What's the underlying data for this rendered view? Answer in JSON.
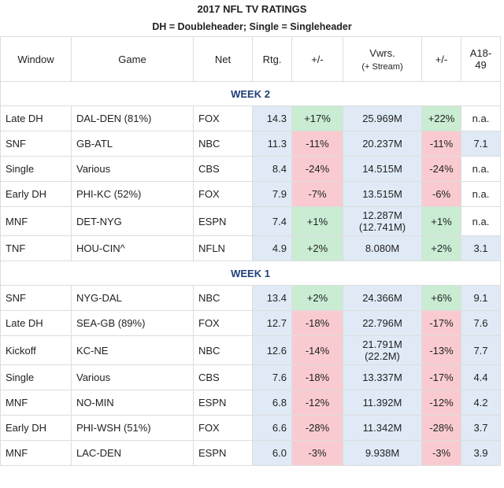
{
  "header": {
    "title": "2017 NFL TV RATINGS",
    "subtitle": "DH = Doubleheader; Single = Singleheader"
  },
  "table": {
    "columns": [
      "Window",
      "Game",
      "Net",
      "Rtg.",
      "+/-",
      [
        "Vwrs.",
        "(+ Stream)"
      ],
      "+/-",
      "A18-49"
    ],
    "sections": [
      {
        "label": "WEEK 2",
        "rows": [
          [
            "Late DH",
            "DAL-DEN (81%)",
            "FOX",
            "14.3",
            "+17%",
            "25.969M",
            "+22%",
            "n.a."
          ],
          [
            "SNF",
            "GB-ATL",
            "NBC",
            "11.3",
            "-11%",
            "20.237M",
            "-11%",
            "7.1"
          ],
          [
            "Single",
            "Various",
            "CBS",
            "8.4",
            "-24%",
            "14.515M",
            "-24%",
            "n.a."
          ],
          [
            "Early DH",
            "PHI-KC (52%)",
            "FOX",
            "7.9",
            "-7%",
            "13.515M",
            "-6%",
            "n.a."
          ],
          [
            "MNF",
            "DET-NYG",
            "ESPN",
            "7.4",
            "+1%",
            [
              "12.287M",
              "(12.741M)"
            ],
            "+1%",
            "n.a."
          ],
          [
            "TNF",
            "HOU-CIN^",
            "NFLN",
            "4.9",
            "+2%",
            "8.080M",
            "+2%",
            "3.1"
          ]
        ]
      },
      {
        "label": "WEEK 1",
        "rows": [
          [
            "SNF",
            "NYG-DAL",
            "NBC",
            "13.4",
            "+2%",
            "24.366M",
            "+6%",
            "9.1"
          ],
          [
            "Late DH",
            "SEA-GB (89%)",
            "FOX",
            "12.7",
            "-18%",
            "22.796M",
            "-17%",
            "7.6"
          ],
          [
            "Kickoff",
            "KC-NE",
            "NBC",
            "12.6",
            "-14%",
            [
              "21.791M",
              "(22.2M)"
            ],
            "-13%",
            "7.7"
          ],
          [
            "Single",
            "Various",
            "CBS",
            "7.6",
            "-18%",
            "13.337M",
            "-17%",
            "4.4"
          ],
          [
            "MNF",
            "NO-MIN",
            "ESPN",
            "6.8",
            "-12%",
            "11.392M",
            "-12%",
            "4.2"
          ],
          [
            "Early DH",
            "PHI-WSH (51%)",
            "FOX",
            "6.6",
            "-28%",
            "11.342M",
            "-28%",
            "3.7"
          ],
          [
            "MNF",
            "LAC-DEN",
            "ESPN",
            "6.0",
            "-3%",
            "9.938M",
            "-3%",
            "3.9"
          ]
        ]
      }
    ]
  }
}
